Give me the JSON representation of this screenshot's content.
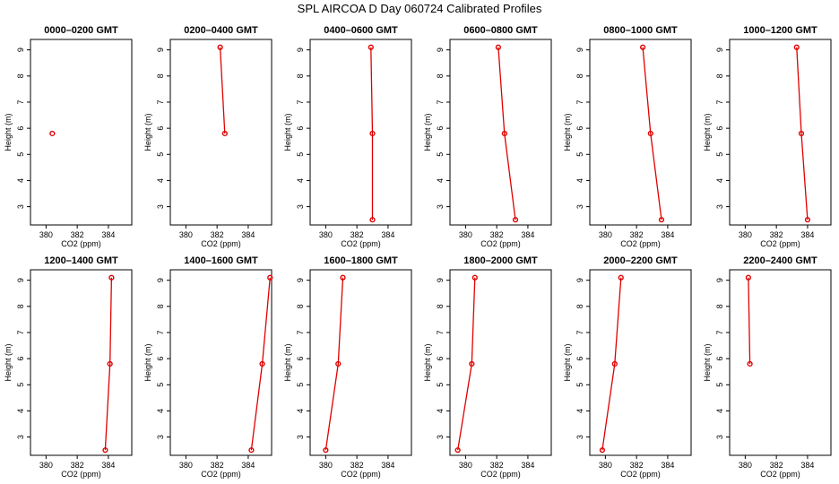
{
  "title": "SPL AIRCOA D  Day 060724  Calibrated Profiles",
  "style": {
    "line_color": "#e00000",
    "marker_color": "#e00000",
    "frame_color": "#000000"
  },
  "chart_data": [
    {
      "type": "line",
      "title": "0000–0200 GMT",
      "xlabel": "CO2 (ppm)",
      "ylabel": "Height (m)",
      "xlim": [
        379,
        385.5
      ],
      "ylim": [
        2.3,
        9.4
      ],
      "xticks": [
        380,
        382,
        384
      ],
      "yticks": [
        3,
        4,
        5,
        6,
        7,
        8,
        9
      ],
      "x": [
        380.4
      ],
      "y": [
        5.8
      ]
    },
    {
      "type": "line",
      "title": "0200–0400 GMT",
      "xlabel": "CO2 (ppm)",
      "ylabel": "Height (m)",
      "xlim": [
        379,
        385.5
      ],
      "ylim": [
        2.3,
        9.4
      ],
      "xticks": [
        380,
        382,
        384
      ],
      "yticks": [
        3,
        4,
        5,
        6,
        7,
        8,
        9
      ],
      "x": [
        382.2,
        382.5
      ],
      "y": [
        9.1,
        5.8
      ]
    },
    {
      "type": "line",
      "title": "0400–0600 GMT",
      "xlabel": "CO2 (ppm)",
      "ylabel": "Height (m)",
      "xlim": [
        379,
        385.5
      ],
      "ylim": [
        2.3,
        9.4
      ],
      "xticks": [
        380,
        382,
        384
      ],
      "yticks": [
        3,
        4,
        5,
        6,
        7,
        8,
        9
      ],
      "x": [
        382.9,
        383.0,
        383.0
      ],
      "y": [
        9.1,
        5.8,
        2.5
      ]
    },
    {
      "type": "line",
      "title": "0600–0800 GMT",
      "xlabel": "CO2 (ppm)",
      "ylabel": "Height (m)",
      "xlim": [
        379,
        385.5
      ],
      "ylim": [
        2.3,
        9.4
      ],
      "xticks": [
        380,
        382,
        384
      ],
      "yticks": [
        3,
        4,
        5,
        6,
        7,
        8,
        9
      ],
      "x": [
        382.1,
        382.5,
        383.2
      ],
      "y": [
        9.1,
        5.8,
        2.5
      ]
    },
    {
      "type": "line",
      "title": "0800–1000 GMT",
      "xlabel": "CO2 (ppm)",
      "ylabel": "Height (m)",
      "xlim": [
        379,
        385.5
      ],
      "ylim": [
        2.3,
        9.4
      ],
      "xticks": [
        380,
        382,
        384
      ],
      "yticks": [
        3,
        4,
        5,
        6,
        7,
        8,
        9
      ],
      "x": [
        382.4,
        382.9,
        383.6
      ],
      "y": [
        9.1,
        5.8,
        2.5
      ]
    },
    {
      "type": "line",
      "title": "1000–1200 GMT",
      "xlabel": "CO2 (ppm)",
      "ylabel": "Height (m)",
      "xlim": [
        379,
        385.5
      ],
      "ylim": [
        2.3,
        9.4
      ],
      "xticks": [
        380,
        382,
        384
      ],
      "yticks": [
        3,
        4,
        5,
        6,
        7,
        8,
        9
      ],
      "x": [
        383.3,
        383.6,
        384.0
      ],
      "y": [
        9.1,
        5.8,
        2.5
      ]
    },
    {
      "type": "line",
      "title": "1200–1400 GMT",
      "xlabel": "CO2 (ppm)",
      "ylabel": "Height (m)",
      "xlim": [
        379,
        385.5
      ],
      "ylim": [
        2.3,
        9.4
      ],
      "xticks": [
        380,
        382,
        384
      ],
      "yticks": [
        3,
        4,
        5,
        6,
        7,
        8,
        9
      ],
      "x": [
        384.2,
        384.1,
        383.8
      ],
      "y": [
        9.1,
        5.8,
        2.5
      ]
    },
    {
      "type": "line",
      "title": "1400–1600 GMT",
      "xlabel": "CO2 (ppm)",
      "ylabel": "Height (m)",
      "xlim": [
        379,
        385.5
      ],
      "ylim": [
        2.3,
        9.4
      ],
      "xticks": [
        380,
        382,
        384
      ],
      "yticks": [
        3,
        4,
        5,
        6,
        7,
        8,
        9
      ],
      "x": [
        385.4,
        384.9,
        384.2
      ],
      "y": [
        9.1,
        5.8,
        2.5
      ]
    },
    {
      "type": "line",
      "title": "1600–1800 GMT",
      "xlabel": "CO2 (ppm)",
      "ylabel": "Height (m)",
      "xlim": [
        379,
        385.5
      ],
      "ylim": [
        2.3,
        9.4
      ],
      "xticks": [
        380,
        382,
        384
      ],
      "yticks": [
        3,
        4,
        5,
        6,
        7,
        8,
        9
      ],
      "x": [
        381.1,
        380.8,
        380.0
      ],
      "y": [
        9.1,
        5.8,
        2.5
      ]
    },
    {
      "type": "line",
      "title": "1800–2000 GMT",
      "xlabel": "CO2 (ppm)",
      "ylabel": "Height (m)",
      "xlim": [
        379,
        385.5
      ],
      "ylim": [
        2.3,
        9.4
      ],
      "xticks": [
        380,
        382,
        384
      ],
      "yticks": [
        3,
        4,
        5,
        6,
        7,
        8,
        9
      ],
      "x": [
        380.6,
        380.4,
        379.5
      ],
      "y": [
        9.1,
        5.8,
        2.5
      ]
    },
    {
      "type": "line",
      "title": "2000–2200 GMT",
      "xlabel": "CO2 (ppm)",
      "ylabel": "Height (m)",
      "xlim": [
        379,
        385.5
      ],
      "ylim": [
        2.3,
        9.4
      ],
      "xticks": [
        380,
        382,
        384
      ],
      "yticks": [
        3,
        4,
        5,
        6,
        7,
        8,
        9
      ],
      "x": [
        381.0,
        380.6,
        379.8
      ],
      "y": [
        9.1,
        5.8,
        2.5
      ]
    },
    {
      "type": "line",
      "title": "2200–2400 GMT",
      "xlabel": "CO2 (ppm)",
      "ylabel": "Height (m)",
      "xlim": [
        379,
        385.5
      ],
      "ylim": [
        2.3,
        9.4
      ],
      "xticks": [
        380,
        382,
        384
      ],
      "yticks": [
        3,
        4,
        5,
        6,
        7,
        8,
        9
      ],
      "x": [
        380.2,
        380.3
      ],
      "y": [
        9.1,
        5.8
      ]
    }
  ]
}
